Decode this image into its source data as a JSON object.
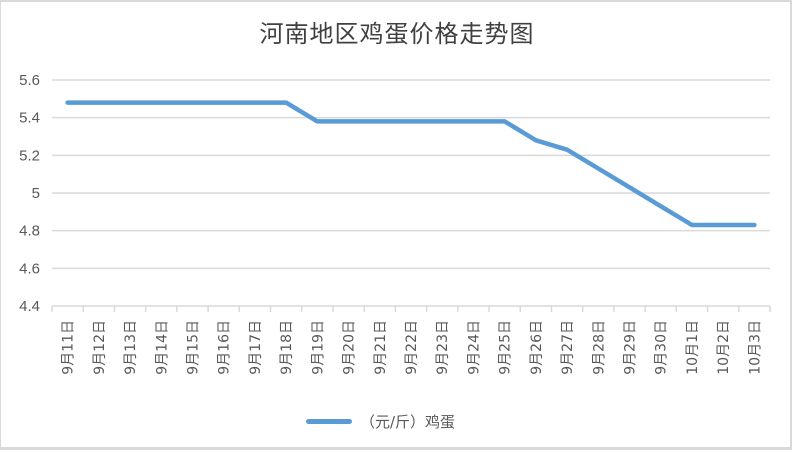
{
  "chart_data": {
    "type": "line",
    "title": "河南地区鸡蛋价格走势图",
    "xlabel": "",
    "ylabel": "",
    "ylim": [
      4.4,
      5.6
    ],
    "yticks": [
      4.4,
      4.6,
      4.8,
      5,
      5.2,
      5.4,
      5.6
    ],
    "ytick_labels": [
      "4.4",
      "4.6",
      "4.8",
      "5",
      "5.2",
      "5.4",
      "5.6"
    ],
    "grid": true,
    "legend_position": "bottom",
    "categories": [
      "9月11日",
      "9月12日",
      "9月13日",
      "9月14日",
      "9月15日",
      "9月16日",
      "9月17日",
      "9月18日",
      "9月19日",
      "9月20日",
      "9月21日",
      "9月22日",
      "9月23日",
      "9月24日",
      "9月25日",
      "9月26日",
      "9月27日",
      "9月28日",
      "9月29日",
      "9月30日",
      "10月1日",
      "10月2日",
      "10月3日"
    ],
    "series": [
      {
        "name": "（元/斤）鸡蛋",
        "color": "#5b9bd5",
        "values": [
          5.48,
          5.48,
          5.48,
          5.48,
          5.48,
          5.48,
          5.48,
          5.48,
          5.38,
          5.38,
          5.38,
          5.38,
          5.38,
          5.38,
          5.38,
          5.28,
          5.23,
          5.13,
          5.03,
          4.93,
          4.83,
          4.83,
          4.83
        ]
      }
    ]
  },
  "colors": {
    "gridline": "#d9d9d9",
    "axis_text": "#595959",
    "title_text": "#404040"
  }
}
